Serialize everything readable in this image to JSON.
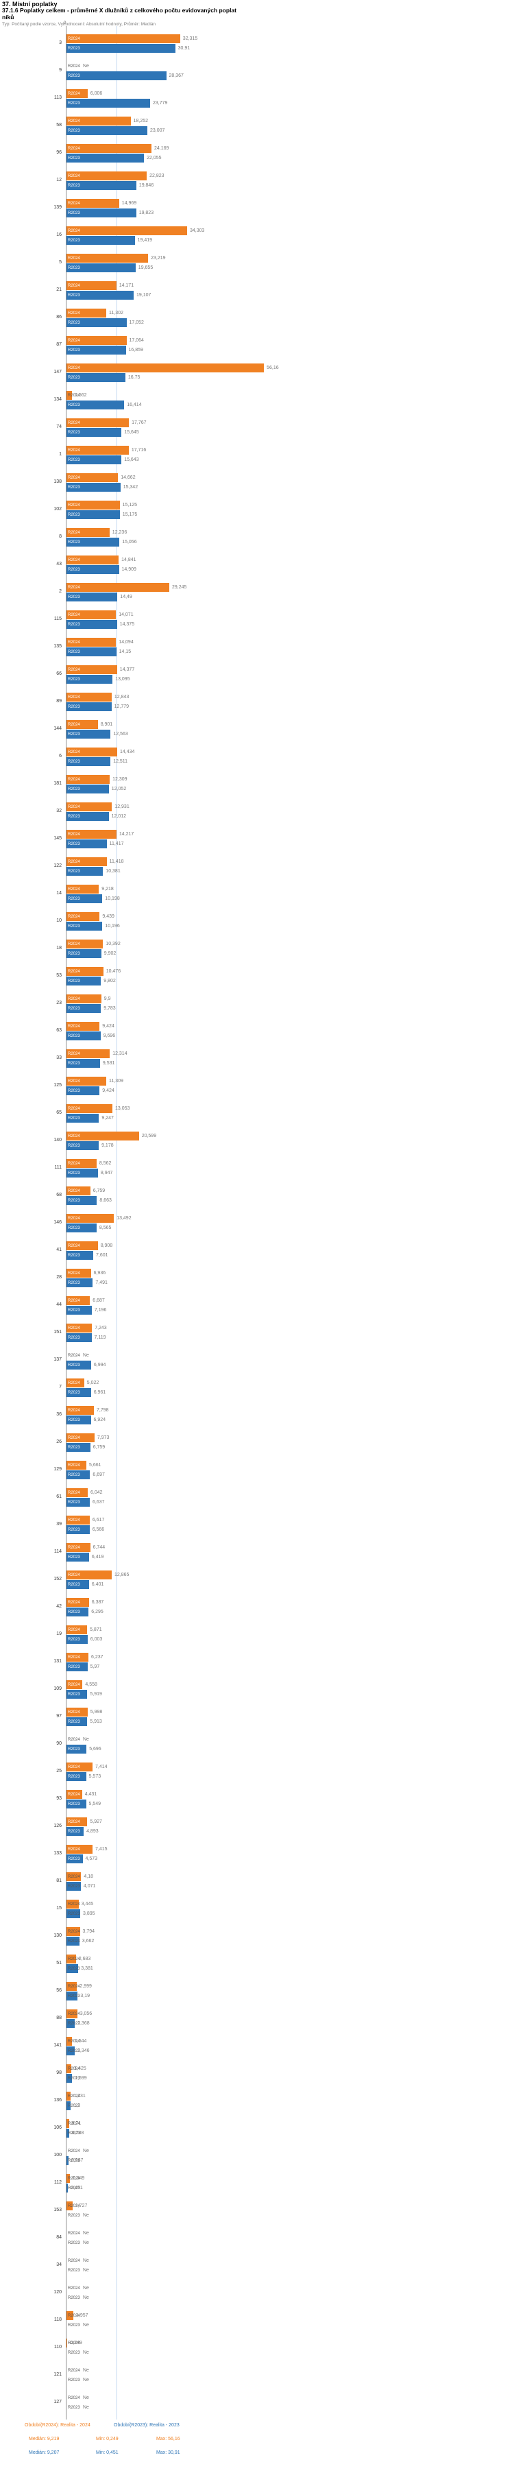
{
  "chart_data": {
    "type": "bar",
    "orientation": "horizontal",
    "title": "37. Místní poplatky",
    "subtitle": "37.1.6 Poplatky celkem - průměrné X dlužníků z celkového počtu evidovaných poplatníků",
    "note": "Typ: Počítaný podle vzorce, Vyhodnocení: Absolutní hodnoty, Průměr: Medián",
    "x_axis": {
      "origin_label": "0",
      "min": 0,
      "max": 60
    },
    "no_data_label": "Ne",
    "series": [
      {
        "key": "r2024",
        "name": "R2024",
        "color": "#f08123",
        "legend_label": "Období(R2024): Realita - 2024",
        "median_label": "Medián: 9,219",
        "min_label": "Min: 0,249",
        "max_label": "Max: 56,16"
      },
      {
        "key": "r2023",
        "name": "R2023",
        "color": "#2e75b6",
        "legend_label": "Období(R2023): Realita - 2023",
        "median_label": "Medián: 9,207",
        "min_label": "Min: 0,451",
        "max_label": "Max: 30,91"
      }
    ],
    "rows": [
      {
        "id": "3",
        "r2024": "32,315",
        "r2023": "30,91"
      },
      {
        "id": "9",
        "r2024": "Ne",
        "r2023": "28,367"
      },
      {
        "id": "113",
        "r2024": "6,006",
        "r2023": "23,779"
      },
      {
        "id": "58",
        "r2024": "18,252",
        "r2023": "23,007"
      },
      {
        "id": "96",
        "r2024": "24,169",
        "r2023": "22,055"
      },
      {
        "id": "12",
        "r2024": "22,823",
        "r2023": "19,846"
      },
      {
        "id": "139",
        "r2024": "14,969",
        "r2023": "19,823"
      },
      {
        "id": "16",
        "r2024": "34,303",
        "r2023": "19,419"
      },
      {
        "id": "5",
        "r2024": "23,219",
        "r2023": "19,655"
      },
      {
        "id": "21",
        "r2024": "14,171",
        "r2023": "19,107"
      },
      {
        "id": "86",
        "r2024": "11,302",
        "r2023": "17,052"
      },
      {
        "id": "87",
        "r2024": "17,064",
        "r2023": "16,859"
      },
      {
        "id": "147",
        "r2024": "56,16",
        "r2023": "16,75"
      },
      {
        "id": "134",
        "r2024": "1,562",
        "r2023": "16,414"
      },
      {
        "id": "74",
        "r2024": "17,767",
        "r2023": "15,645"
      },
      {
        "id": "1",
        "r2024": "17,716",
        "r2023": "15,643"
      },
      {
        "id": "138",
        "r2024": "14,662",
        "r2023": "15,342"
      },
      {
        "id": "102",
        "r2024": "15,125",
        "r2023": "15,175"
      },
      {
        "id": "8",
        "r2024": "12,236",
        "r2023": "15,056"
      },
      {
        "id": "43",
        "r2024": "14,841",
        "r2023": "14,909"
      },
      {
        "id": "2",
        "r2024": "29,245",
        "r2023": "14,49"
      },
      {
        "id": "115",
        "r2024": "14,071",
        "r2023": "14,375"
      },
      {
        "id": "135",
        "r2024": "14,094",
        "r2023": "14,15"
      },
      {
        "id": "66",
        "r2024": "14,377",
        "r2023": "13,095"
      },
      {
        "id": "89",
        "r2024": "12,843",
        "r2023": "12,779"
      },
      {
        "id": "144",
        "r2024": "8,901",
        "r2023": "12,563"
      },
      {
        "id": "6",
        "r2024": "14,434",
        "r2023": "12,511"
      },
      {
        "id": "181",
        "r2024": "12,309",
        "r2023": "12,052"
      },
      {
        "id": "32",
        "r2024": "12,931",
        "r2023": "12,012"
      },
      {
        "id": "145",
        "r2024": "14,217",
        "r2023": "11,417"
      },
      {
        "id": "122",
        "r2024": "11,418",
        "r2023": "10,381"
      },
      {
        "id": "14",
        "r2024": "9,218",
        "r2023": "10,198"
      },
      {
        "id": "10",
        "r2024": "9,439",
        "r2023": "10,196"
      },
      {
        "id": "18",
        "r2024": "10,392",
        "r2023": "9,902"
      },
      {
        "id": "53",
        "r2024": "10,476",
        "r2023": "9,802"
      },
      {
        "id": "23",
        "r2024": "9,9",
        "r2023": "9,783"
      },
      {
        "id": "63",
        "r2024": "9,424",
        "r2023": "9,696"
      },
      {
        "id": "33",
        "r2024": "12,314",
        "r2023": "9,531"
      },
      {
        "id": "125",
        "r2024": "11,309",
        "r2023": "9,424"
      },
      {
        "id": "65",
        "r2024": "13,053",
        "r2023": "9,247"
      },
      {
        "id": "140",
        "r2024": "20,599",
        "r2023": "9,178"
      },
      {
        "id": "111",
        "r2024": "8,562",
        "r2023": "8,947"
      },
      {
        "id": "68",
        "r2024": "6,759",
        "r2023": "8,663"
      },
      {
        "id": "146",
        "r2024": "13,492",
        "r2023": "8,565"
      },
      {
        "id": "41",
        "r2024": "8,908",
        "r2023": "7,601"
      },
      {
        "id": "28",
        "r2024": "6,936",
        "r2023": "7,491"
      },
      {
        "id": "44",
        "r2024": "6,687",
        "r2023": "7,196"
      },
      {
        "id": "151",
        "r2024": "7,243",
        "r2023": "7,119"
      },
      {
        "id": "137",
        "r2024": "Ne",
        "r2023": "6,994"
      },
      {
        "id": "7",
        "r2024": "5,022",
        "r2023": "6,961"
      },
      {
        "id": "36",
        "r2024": "7,798",
        "r2023": "6,924"
      },
      {
        "id": "26",
        "r2024": "7,973",
        "r2023": "6,759"
      },
      {
        "id": "129",
        "r2024": "5,661",
        "r2023": "6,697"
      },
      {
        "id": "61",
        "r2024": "6,042",
        "r2023": "6,637"
      },
      {
        "id": "39",
        "r2024": "6,617",
        "r2023": "6,566"
      },
      {
        "id": "114",
        "r2024": "6,744",
        "r2023": "6,419"
      },
      {
        "id": "152",
        "r2024": "12,865",
        "r2023": "6,401"
      },
      {
        "id": "42",
        "r2024": "6,387",
        "r2023": "6,295"
      },
      {
        "id": "19",
        "r2024": "5,871",
        "r2023": "6,003"
      },
      {
        "id": "131",
        "r2024": "6,237",
        "r2023": "5,97"
      },
      {
        "id": "109",
        "r2024": "4,558",
        "r2023": "5,919"
      },
      {
        "id": "97",
        "r2024": "5,998",
        "r2023": "5,913"
      },
      {
        "id": "90",
        "r2024": "Ne",
        "r2023": "5,696"
      },
      {
        "id": "25",
        "r2024": "7,414",
        "r2023": "5,573"
      },
      {
        "id": "93",
        "r2024": "4,431",
        "r2023": "5,549"
      },
      {
        "id": "126",
        "r2024": "5,927",
        "r2023": "4,893"
      },
      {
        "id": "133",
        "r2024": "7,415",
        "r2023": "4,573"
      },
      {
        "id": "81",
        "r2024": "4,18",
        "r2023": "4,071"
      },
      {
        "id": "15",
        "r2024": "3,445",
        "r2023": "3,895"
      },
      {
        "id": "130",
        "r2024": "3,794",
        "r2023": "3,662"
      },
      {
        "id": "51",
        "r2024": "2,683",
        "r2023": "3,381"
      },
      {
        "id": "56",
        "r2024": "2,999",
        "r2023": "3,19"
      },
      {
        "id": "88",
        "r2024": "3,056",
        "r2023": "2,368"
      },
      {
        "id": "141",
        "r2024": "1,544",
        "r2023": "2,346"
      },
      {
        "id": "98",
        "r2024": "1,425",
        "r2023": "1,599"
      },
      {
        "id": "136",
        "r2024": "1,231",
        "r2023": "1,2"
      },
      {
        "id": "106",
        "r2024": "0,71",
        "r2023": "0,738"
      },
      {
        "id": "100",
        "r2024": "Ne",
        "r2023": "0,567"
      },
      {
        "id": "112",
        "r2024": "0,949",
        "r2023": "0,451"
      },
      {
        "id": "153",
        "r2024": "1,727",
        "r2023": "Ne"
      },
      {
        "id": "84",
        "r2024": "Ne",
        "r2023": "Ne"
      },
      {
        "id": "34",
        "r2024": "Ne",
        "r2023": "Ne"
      },
      {
        "id": "120",
        "r2024": "Ne",
        "r2023": "Ne"
      },
      {
        "id": "118",
        "r2024": "1,957",
        "r2023": "Ne"
      },
      {
        "id": "110",
        "r2024": "0,249",
        "r2023": "Ne"
      },
      {
        "id": "121",
        "r2024": "Ne",
        "r2023": "Ne"
      },
      {
        "id": "127",
        "r2024": "Ne",
        "r2023": "Ne"
      }
    ]
  }
}
